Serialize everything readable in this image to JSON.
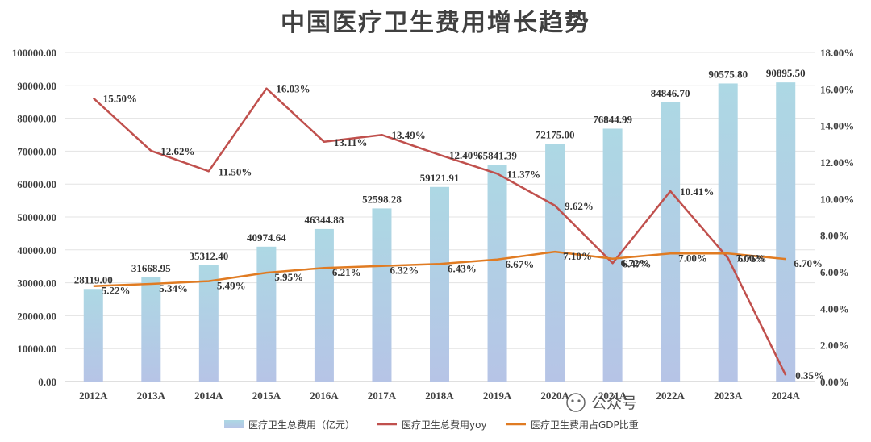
{
  "chart_data": {
    "type": "bar",
    "title": "中国医疗卫生费用增长趋势",
    "categories": [
      "2012A",
      "2013A",
      "2014A",
      "2015A",
      "2016A",
      "2017A",
      "2018A",
      "2019A",
      "2020A",
      "2021A",
      "2022A",
      "2023A",
      "2024A"
    ],
    "series": [
      {
        "name": "医疗卫生总费用（亿元）",
        "type": "bar",
        "axis": "left",
        "color_top": "#add8e4",
        "color_bottom": "#b6c4e6",
        "values": [
          28119.0,
          31668.95,
          35312.4,
          40974.64,
          46344.88,
          52598.28,
          59121.91,
          65841.39,
          72175.0,
          76844.99,
          84846.7,
          90575.8,
          90895.5
        ],
        "labels": [
          "28119.00",
          "31668.95",
          "35312.40",
          "40974.64",
          "46344.88",
          "52598.28",
          "59121.91",
          "65841.39",
          "72175.00",
          "76844.99",
          "84846.70",
          "90575.80",
          "90895.50"
        ]
      },
      {
        "name": "医疗卫生总费用yoy",
        "type": "line",
        "axis": "right",
        "color": "#c0504d",
        "values": [
          15.5,
          12.62,
          11.5,
          16.03,
          13.11,
          13.49,
          12.4,
          11.37,
          9.62,
          6.47,
          10.41,
          6.75,
          0.35
        ],
        "labels": [
          "15.50%",
          "12.62%",
          "11.50%",
          "16.03%",
          "13.11%",
          "13.49%",
          "12.40%",
          "11.37%",
          "9.62%",
          "6.47%",
          "10.41%",
          "6.75%",
          "0.35%"
        ]
      },
      {
        "name": "医疗卫生费用占GDP比重",
        "type": "line",
        "axis": "right",
        "color": "#e07b22",
        "values": [
          5.22,
          5.34,
          5.49,
          5.95,
          6.21,
          6.32,
          6.43,
          6.67,
          7.1,
          6.72,
          7.0,
          7.0,
          6.7
        ],
        "labels": [
          "5.22%",
          "5.34%",
          "5.49%",
          "5.95%",
          "6.21%",
          "6.32%",
          "6.43%",
          "6.67%",
          "7.10%",
          "6.72%",
          "7.00%",
          "7.00%",
          "6.70%"
        ]
      }
    ],
    "yleft": {
      "min": 0,
      "max": 100000,
      "ticks": [
        "0.00",
        "10000.00",
        "20000.00",
        "30000.00",
        "40000.00",
        "50000.00",
        "60000.00",
        "70000.00",
        "80000.00",
        "90000.00",
        "100000.00"
      ]
    },
    "yright": {
      "min": 0,
      "max": 18,
      "ticks": [
        "0.00%",
        "2.00%",
        "4.00%",
        "6.00%",
        "8.00%",
        "10.00%",
        "12.00%",
        "14.00%",
        "16.00%",
        "18.00%"
      ]
    },
    "grid": true,
    "legend_position": "bottom"
  },
  "watermark": {
    "text": "公众号"
  }
}
